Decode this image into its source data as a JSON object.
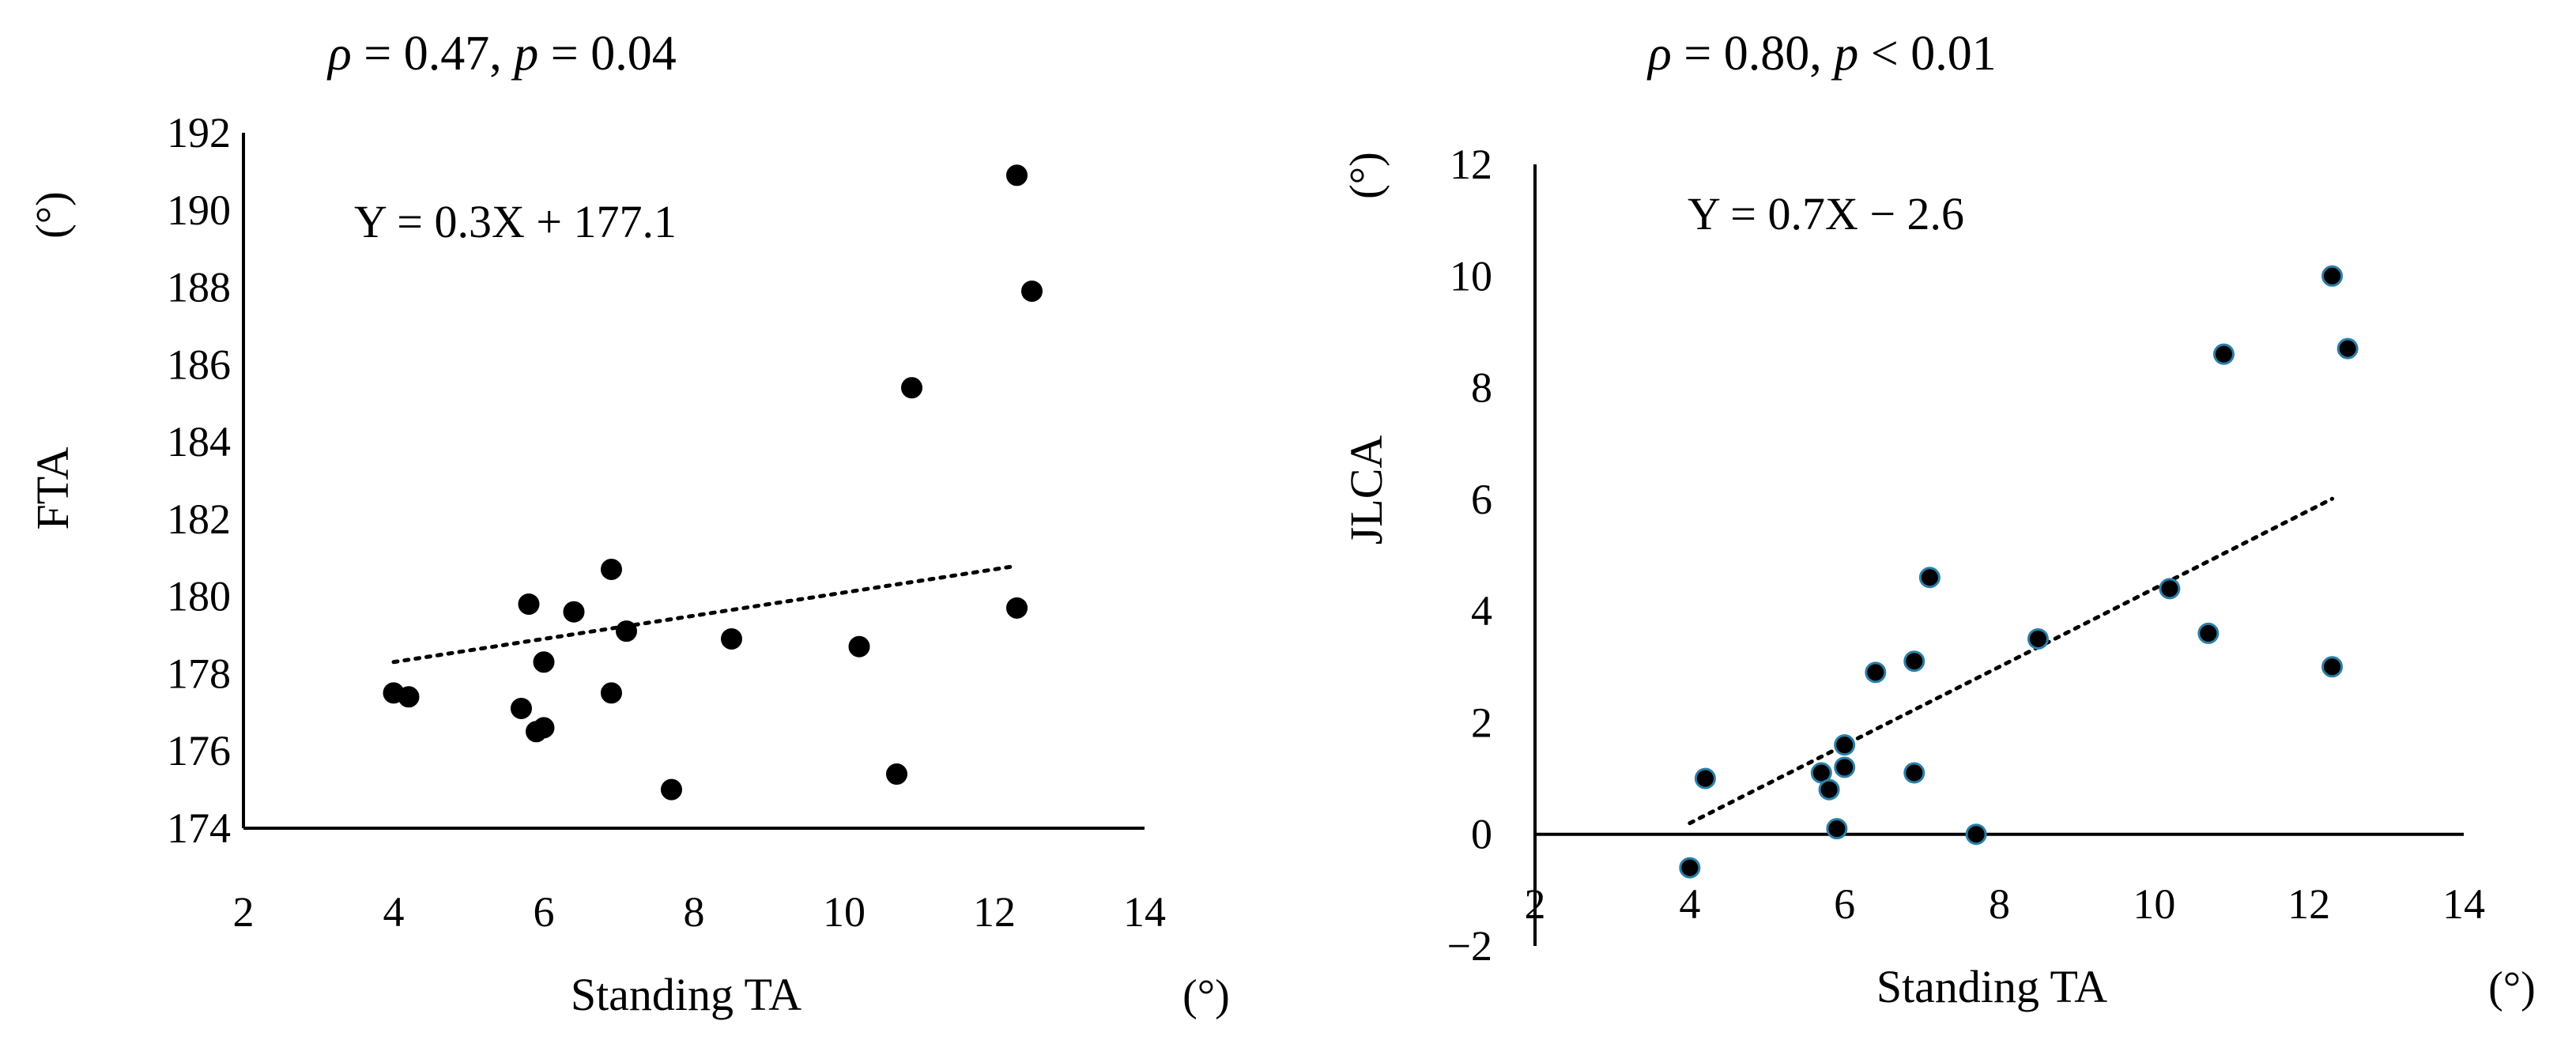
{
  "chart_data": [
    {
      "type": "scatter",
      "stat": {
        "rho_sym": "ρ",
        "rho_val": " = 0.47, ",
        "p_sym": "p",
        "p_val": " = 0.04"
      },
      "equation": "Y = 0.3X + 177.1",
      "xlabel": "Standing TA",
      "x_unit": "(°)",
      "ylabel": "FTA",
      "y_unit": "(°)",
      "xlim": [
        2,
        14
      ],
      "ylim": [
        174,
        192
      ],
      "xticks": [
        2,
        4,
        6,
        8,
        10,
        12,
        14
      ],
      "yticks": [
        174,
        176,
        178,
        180,
        182,
        184,
        186,
        188,
        190,
        192
      ],
      "marker_color": "#000000",
      "marker_edge_color": "#000000",
      "trendline": {
        "slope": 0.3,
        "intercept": 177.1,
        "x_start": 4.0,
        "x_end": 12.3,
        "style": "dotted"
      },
      "points": [
        {
          "x": 4.0,
          "y": 177.5
        },
        {
          "x": 4.2,
          "y": 177.4
        },
        {
          "x": 5.7,
          "y": 177.1
        },
        {
          "x": 5.8,
          "y": 179.8
        },
        {
          "x": 5.9,
          "y": 176.5
        },
        {
          "x": 6.0,
          "y": 176.6
        },
        {
          "x": 6.0,
          "y": 178.3
        },
        {
          "x": 6.4,
          "y": 179.6
        },
        {
          "x": 6.9,
          "y": 180.7
        },
        {
          "x": 6.9,
          "y": 177.5
        },
        {
          "x": 7.1,
          "y": 179.1
        },
        {
          "x": 7.7,
          "y": 175.0
        },
        {
          "x": 8.5,
          "y": 178.9
        },
        {
          "x": 10.2,
          "y": 178.7
        },
        {
          "x": 10.7,
          "y": 175.4
        },
        {
          "x": 10.9,
          "y": 185.4
        },
        {
          "x": 12.3,
          "y": 190.9
        },
        {
          "x": 12.3,
          "y": 179.7
        },
        {
          "x": 12.5,
          "y": 187.9
        }
      ]
    },
    {
      "type": "scatter",
      "stat": {
        "rho_sym": "ρ",
        "rho_val": " = 0.80, ",
        "p_sym": "p",
        "p_val": " < 0.01"
      },
      "equation": "Y = 0.7X − 2.6",
      "xlabel": "Standing TA",
      "x_unit": "(°)",
      "ylabel": "JLCA",
      "y_unit": "(°)",
      "xlim": [
        2,
        14
      ],
      "ylim": [
        -2,
        12
      ],
      "xticks": [
        2,
        4,
        6,
        8,
        10,
        12,
        14
      ],
      "yticks": [
        -2,
        0,
        2,
        4,
        6,
        8,
        10,
        12
      ],
      "ytick_labels": [
        "−2",
        "0",
        "2",
        "4",
        "6",
        "8",
        "10",
        "12"
      ],
      "marker_color": "#000000",
      "marker_edge_color": "#2a7fa8",
      "trendline": {
        "slope": 0.7,
        "intercept": -2.6,
        "x_start": 4.0,
        "x_end": 12.3,
        "style": "dotted"
      },
      "points": [
        {
          "x": 4.0,
          "y": -0.6
        },
        {
          "x": 4.2,
          "y": 1.0
        },
        {
          "x": 5.7,
          "y": 1.1
        },
        {
          "x": 5.8,
          "y": 0.8
        },
        {
          "x": 5.9,
          "y": 0.1
        },
        {
          "x": 6.0,
          "y": 1.2
        },
        {
          "x": 6.0,
          "y": 1.6
        },
        {
          "x": 6.4,
          "y": 2.9
        },
        {
          "x": 6.9,
          "y": 3.1
        },
        {
          "x": 6.9,
          "y": 1.1
        },
        {
          "x": 7.1,
          "y": 4.6
        },
        {
          "x": 7.7,
          "y": 0.0
        },
        {
          "x": 8.5,
          "y": 3.5
        },
        {
          "x": 10.2,
          "y": 4.4
        },
        {
          "x": 10.7,
          "y": 3.6
        },
        {
          "x": 10.9,
          "y": 8.6
        },
        {
          "x": 12.3,
          "y": 10.0
        },
        {
          "x": 12.3,
          "y": 3.0
        },
        {
          "x": 12.5,
          "y": 8.7
        }
      ]
    }
  ]
}
